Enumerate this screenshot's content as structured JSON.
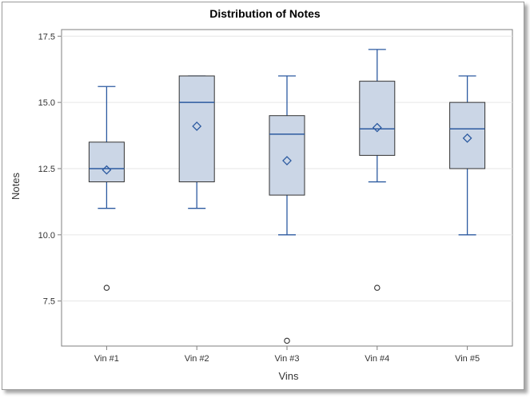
{
  "chart_data": {
    "type": "box",
    "title": "Distribution of Notes",
    "xlabel": "Vins",
    "ylabel": "Notes",
    "ylim": [
      5.8,
      17.75
    ],
    "yticks": [
      "7.5",
      "10.0",
      "12.5",
      "15.0",
      "17.5"
    ],
    "grid": true,
    "categories": [
      "Vin #1",
      "Vin #2",
      "Vin #3",
      "Vin #4",
      "Vin #5"
    ],
    "boxes": [
      {
        "category": "Vin #1",
        "whisker_low": 11,
        "q1": 12,
        "median": 12.5,
        "q3": 13.5,
        "whisker_high": 15.6,
        "mean": 12.45,
        "outliers": [
          8
        ]
      },
      {
        "category": "Vin #2",
        "whisker_low": 11,
        "q1": 12,
        "median": 15,
        "q3": 16,
        "whisker_high": 16,
        "mean": 14.1,
        "outliers": []
      },
      {
        "category": "Vin #3",
        "whisker_low": 10,
        "q1": 11.5,
        "median": 13.8,
        "q3": 14.5,
        "whisker_high": 16,
        "mean": 12.8,
        "outliers": [
          6
        ]
      },
      {
        "category": "Vin #4",
        "whisker_low": 12,
        "q1": 13,
        "median": 14,
        "q3": 15.8,
        "whisker_high": 17,
        "mean": 14.05,
        "outliers": [
          8
        ]
      },
      {
        "category": "Vin #5",
        "whisker_low": 10,
        "q1": 12.5,
        "median": 14,
        "q3": 15,
        "whisker_high": 16,
        "mean": 13.65,
        "outliers": []
      }
    ],
    "colors": {
      "box_fill": "#cbd6e6",
      "box_outline": "#333333",
      "whisker": "#2c5aa0",
      "median": "#2c5aa0",
      "mean_marker": "#2c5aa0",
      "outlier": "#333333",
      "grid": "#e6e6e6",
      "axis": "#7f7f7f"
    }
  }
}
